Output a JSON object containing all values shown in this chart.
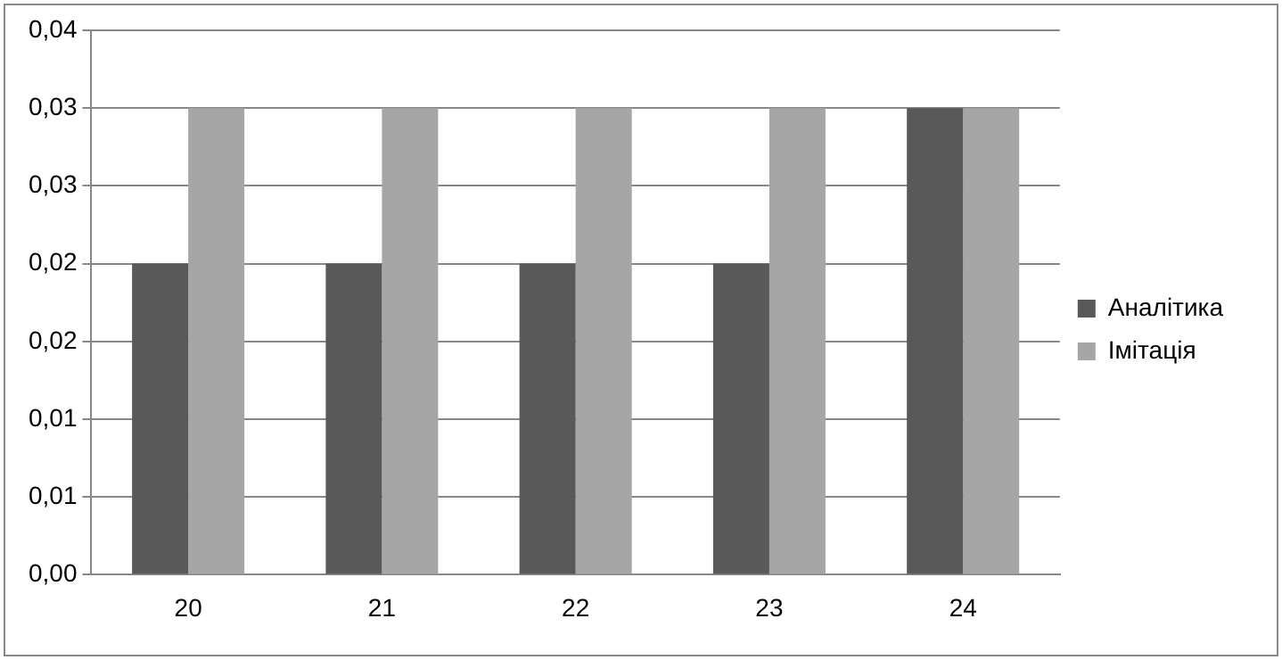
{
  "chart_data": {
    "type": "bar",
    "categories": [
      "20",
      "21",
      "22",
      "23",
      "24"
    ],
    "series": [
      {
        "name": "Аналітика",
        "color": "#595959",
        "values": [
          0.02,
          0.02,
          0.02,
          0.02,
          0.03
        ]
      },
      {
        "name": "Імітація",
        "color": "#a6a6a6",
        "values": [
          0.03,
          0.03,
          0.03,
          0.03,
          0.03
        ]
      }
    ],
    "ylim": [
      0,
      0.035
    ],
    "yticks": [
      {
        "value": 0,
        "label": "0,00"
      },
      {
        "value": 0.005,
        "label": "0,01"
      },
      {
        "value": 0.01,
        "label": "0,01"
      },
      {
        "value": 0.015,
        "label": "0,02"
      },
      {
        "value": 0.02,
        "label": "0,02"
      },
      {
        "value": 0.025,
        "label": "0,03"
      },
      {
        "value": 0.03,
        "label": "0,03"
      },
      {
        "value": 0.035,
        "label": "0,04"
      }
    ],
    "grid": "y",
    "legend": "right"
  }
}
